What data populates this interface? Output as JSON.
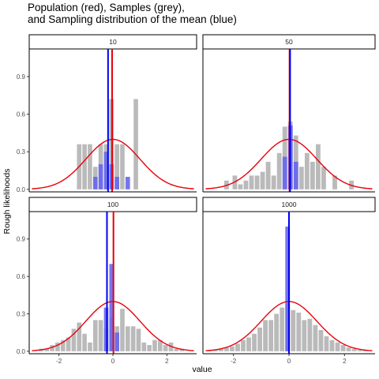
{
  "chart_data": {
    "type": "bar",
    "title_lines": [
      "Population (red), Samples (grey),",
      "and Sampling distribution of the mean (blue)"
    ],
    "xlabel": "value",
    "ylabel": "Rough likelihoods",
    "xlim": [
      -3.1,
      3.1
    ],
    "ylim": [
      -0.02,
      1.12
    ],
    "x_ticks": [
      "-2",
      "0",
      "2"
    ],
    "y_ticks": [
      "0.0",
      "0.3",
      "0.6",
      "0.9"
    ],
    "colors": {
      "population": "#e8000b",
      "samples": "#bababa",
      "mean_dist": "#0000ee",
      "mean_hist": "#6666ee"
    },
    "panels": [
      {
        "label": "10",
        "sample_bins": {
          "x": [
            -1.25,
            -1.05,
            -0.85,
            -0.65,
            -0.45,
            -0.25,
            -0.05,
            0.15,
            0.35,
            0.85
          ],
          "y": [
            0.36,
            0.36,
            0.36,
            0.18,
            0.36,
            0.36,
            0.72,
            0.36,
            0.36,
            0.72
          ]
        },
        "mean_bins": {
          "x": [
            -0.65,
            -0.45,
            -0.25,
            -0.05,
            0.15,
            0.55
          ],
          "y": [
            0.1,
            0.2,
            0.3,
            0.2,
            0.1,
            0.1
          ]
        },
        "sample_mean_line": -0.18,
        "pop_mean_line": -0.03
      },
      {
        "label": "50",
        "sample_bins": {
          "x": [
            -2.25,
            -1.95,
            -1.75,
            -1.55,
            -1.35,
            -1.15,
            -0.95,
            -0.75,
            -0.55,
            -0.35,
            -0.15,
            0.05,
            0.25,
            0.45,
            0.65,
            0.85,
            1.05,
            1.25,
            1.65,
            2.25
          ],
          "y": [
            0.07,
            0.11,
            0.04,
            0.07,
            0.11,
            0.11,
            0.14,
            0.22,
            0.11,
            0.29,
            0.5,
            0.54,
            0.43,
            0.18,
            0.29,
            0.22,
            0.36,
            0.18,
            0.11,
            0.07
          ]
        },
        "mean_bins": {
          "x": [
            -0.15,
            0.05,
            0.25
          ],
          "y": [
            0.26,
            0.51,
            0.22
          ]
        },
        "sample_mean_line": 0.04,
        "pop_mean_line": 0.02
      },
      {
        "label": "100",
        "sample_bins": {
          "x": [
            -2.65,
            -2.45,
            -2.25,
            -2.05,
            -1.85,
            -1.65,
            -1.45,
            -1.25,
            -1.05,
            -0.85,
            -0.65,
            -0.45,
            -0.25,
            -0.05,
            0.15,
            0.35,
            0.55,
            0.75,
            0.95,
            1.15,
            1.35,
            1.55,
            1.75,
            1.95,
            2.15,
            2.35,
            2.55
          ],
          "y": [
            0.02,
            0.02,
            0.05,
            0.07,
            0.09,
            0.11,
            0.18,
            0.23,
            0.14,
            0.07,
            0.25,
            0.25,
            0.18,
            0.27,
            0.2,
            0.34,
            0.2,
            0.2,
            0.18,
            0.07,
            0.05,
            0.09,
            0.09,
            0.05,
            0.07,
            0.02,
            0.02
          ]
        },
        "mean_bins": {
          "x": [
            -0.25,
            -0.05,
            0.15
          ],
          "y": [
            0.35,
            0.7,
            0.15
          ]
        },
        "sample_mean_line": -0.22,
        "pop_mean_line": 0.02
      },
      {
        "label": "1000",
        "sample_bins": {
          "x": [
            -2.85,
            -2.65,
            -2.45,
            -2.25,
            -2.05,
            -1.85,
            -1.65,
            -1.45,
            -1.25,
            -1.05,
            -0.85,
            -0.65,
            -0.45,
            -0.25,
            -0.05,
            0.15,
            0.35,
            0.55,
            0.75,
            0.95,
            1.15,
            1.35,
            1.55,
            1.75,
            1.95,
            2.15,
            2.35,
            2.55,
            2.75
          ],
          "y": [
            0.01,
            0.01,
            0.02,
            0.03,
            0.04,
            0.06,
            0.09,
            0.11,
            0.14,
            0.19,
            0.25,
            0.25,
            0.3,
            0.35,
            0.38,
            0.33,
            0.31,
            0.25,
            0.26,
            0.21,
            0.17,
            0.12,
            0.09,
            0.07,
            0.05,
            0.03,
            0.02,
            0.01,
            0.01
          ]
        },
        "mean_bins": {
          "x": [
            -0.05
          ],
          "y": [
            1.0
          ]
        },
        "sample_mean_line": 0.0,
        "pop_mean_line": 0.0
      }
    ]
  }
}
